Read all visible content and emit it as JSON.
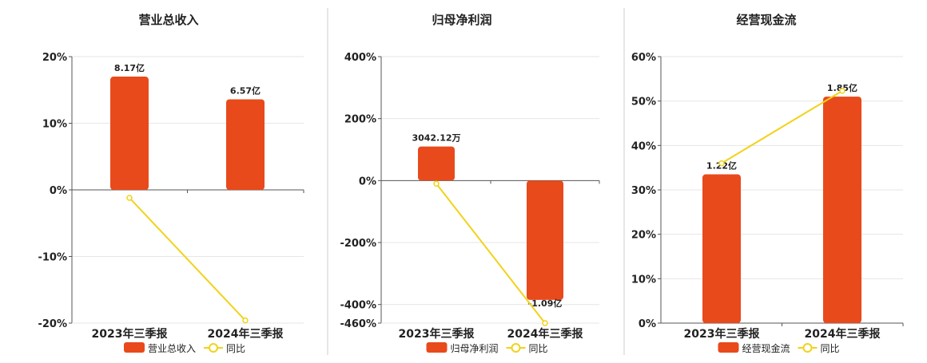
{
  "colors": {
    "bar": "#e84a1c",
    "line": "#f2d21a",
    "text": "#222222"
  },
  "legend": {
    "bar_icon": "bar-swatch",
    "line_icon": "line-circle-marker",
    "yoy_label": "同比"
  },
  "chart_data": [
    {
      "type": "bar",
      "title": "营业总收入",
      "categories": [
        "2023年三季报",
        "2024年三季报"
      ],
      "ylim": [
        -20,
        20
      ],
      "yticks": [
        20,
        10,
        0,
        -10,
        -20
      ],
      "ytick_labels": [
        "20%",
        "10%",
        "0%",
        "-10%",
        "-20%"
      ],
      "series": [
        {
          "name": "营业总收入",
          "kind": "bar",
          "values": [
            17.0,
            13.6
          ],
          "labels": [
            "8.17亿",
            "6.57亿"
          ]
        },
        {
          "name": "同比",
          "kind": "line",
          "values": [
            -1.2,
            -19.6
          ]
        }
      ],
      "grid": true,
      "legend_position": "bottom"
    },
    {
      "type": "bar",
      "title": "归母净利润",
      "categories": [
        "2023年三季报",
        "2024年三季报"
      ],
      "ylim": [
        -460,
        400
      ],
      "yticks": [
        400,
        200,
        0,
        -200,
        -400,
        -460
      ],
      "ytick_labels": [
        "400%",
        "200%",
        "0%",
        "-200%",
        "-400%",
        "-460%"
      ],
      "series": [
        {
          "name": "归母净利润",
          "kind": "bar",
          "values": [
            110,
            -385
          ],
          "labels": [
            "3042.12万",
            "-1.09亿"
          ]
        },
        {
          "name": "同比",
          "kind": "line",
          "values": [
            -10,
            -460
          ]
        }
      ],
      "grid": true,
      "legend_position": "bottom"
    },
    {
      "type": "bar",
      "title": "经营现金流",
      "categories": [
        "2023年三季报",
        "2024年三季报"
      ],
      "ylim": [
        0,
        60
      ],
      "yticks": [
        60,
        50,
        40,
        30,
        20,
        10,
        0
      ],
      "ytick_labels": [
        "60%",
        "50%",
        "40%",
        "30%",
        "20%",
        "10%",
        "0%"
      ],
      "series": [
        {
          "name": "经营现金流",
          "kind": "bar",
          "values": [
            33.5,
            51.0
          ],
          "labels": [
            "1.22亿",
            "1.85亿"
          ]
        },
        {
          "name": "同比",
          "kind": "line",
          "values": [
            36,
            52.3
          ]
        }
      ],
      "grid": true,
      "legend_position": "bottom"
    }
  ]
}
